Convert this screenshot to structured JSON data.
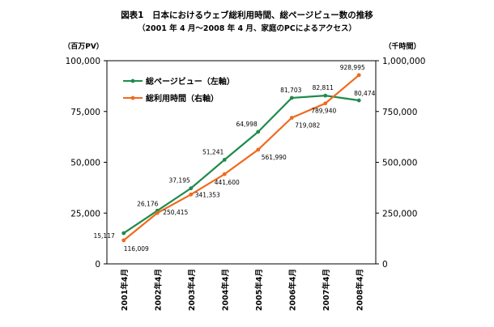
{
  "chart_data": {
    "type": "line",
    "title": "図表1　日本におけるウェブ総利用時間、総ページビュー数の推移",
    "subtitle": "（2001 年 4 月～2008 年 4 月、家庭のPCによるアクセス）",
    "y_left_label": "（百万PV）",
    "y_right_label": "（千時間）",
    "categories": [
      "2001年4月",
      "2002年4月",
      "2003年4月",
      "2004年4月",
      "2005年4月",
      "2006年4月",
      "2007年4月",
      "2008年4月"
    ],
    "y_left_ticks": [
      "0",
      "25,000",
      "50,000",
      "75,000",
      "100,000"
    ],
    "y_right_ticks": [
      "0",
      "250,000",
      "500,000",
      "750,000",
      "1,000,000"
    ],
    "y_left_lim": [
      0,
      100000
    ],
    "y_right_lim": [
      0,
      1000000
    ],
    "legend_position": "top-left",
    "grid": false,
    "series": [
      {
        "name": "総ページビュー（左軸）",
        "axis": "left",
        "color": "#1e8b4c",
        "values": [
          15117,
          26176,
          37195,
          51241,
          64998,
          81703,
          82811,
          80474
        ],
        "labels": [
          "15,117",
          "26,176",
          "37,195",
          "51,241",
          "64,998",
          "81,703",
          "82,811",
          "80,474"
        ]
      },
      {
        "name": "総利用時間（右軸）",
        "axis": "right",
        "color": "#f06a1e",
        "values": [
          116009,
          250415,
          341353,
          441600,
          561990,
          719082,
          789940,
          928995
        ],
        "labels": [
          "116,009",
          "250,415",
          "341,353",
          "441,600",
          "561,990",
          "719,082",
          "789,940",
          "928,995"
        ]
      }
    ]
  }
}
